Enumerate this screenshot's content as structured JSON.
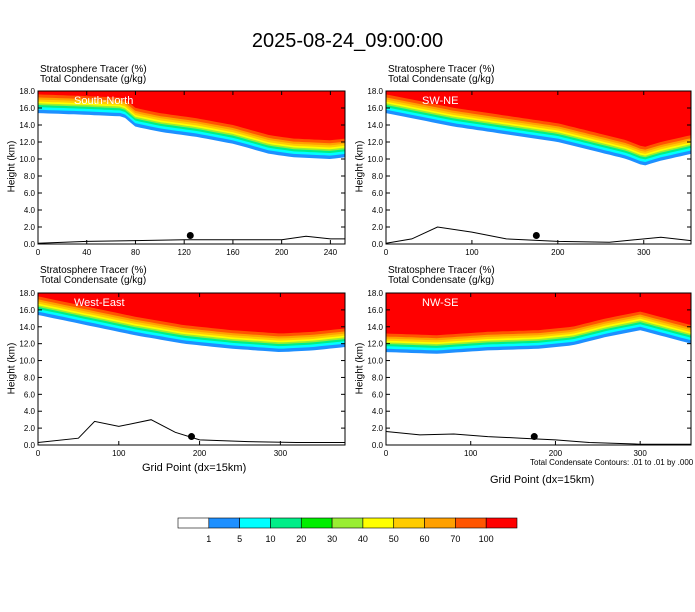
{
  "page_title": "2025-08-24_09:00:00",
  "colors": {
    "bins": [
      "#ffffff",
      "#1e90ff",
      "#00ffff",
      "#00ee88",
      "#00ee00",
      "#99ee33",
      "#ffff00",
      "#ffcc00",
      "#ffa000",
      "#ff5500",
      "#ff0000"
    ]
  },
  "colorbar": {
    "labels": [
      "1",
      "5",
      "10",
      "20",
      "30",
      "40",
      "50",
      "60",
      "70",
      "100"
    ]
  },
  "chart_data": [
    {
      "type": "contour-cross-section",
      "header_lines": [
        "Stratosphere Tracer    (%)",
        "Total Condensate    (g/kg)"
      ],
      "section_label": "South-North",
      "ylabel": "Height (km)",
      "xlabel": "",
      "xlim": [
        0,
        252
      ],
      "ylim": [
        0,
        18
      ],
      "xticks": [
        "0",
        "40",
        "80",
        "120",
        "160",
        "200",
        "240"
      ],
      "xtick_values": [
        0,
        40,
        80,
        120,
        160,
        200,
        240
      ],
      "yticks": [
        "0.0",
        "2.0",
        "4.0",
        "6.0",
        "8.0",
        "10.0",
        "12.0",
        "14.0",
        "16.0",
        "18.0"
      ],
      "tracer_base_km": [
        [
          0,
          15.4
        ],
        [
          40,
          15.2
        ],
        [
          70,
          15.0
        ],
        [
          80,
          13.8
        ],
        [
          100,
          13.2
        ],
        [
          130,
          12.6
        ],
        [
          160,
          11.8
        ],
        [
          190,
          10.6
        ],
        [
          210,
          10.2
        ],
        [
          240,
          10.0
        ],
        [
          252,
          10.2
        ]
      ],
      "terrain_km": [
        [
          0,
          0.1
        ],
        [
          40,
          0.3
        ],
        [
          80,
          0.4
        ],
        [
          120,
          0.5
        ],
        [
          160,
          0.5
        ],
        [
          200,
          0.5
        ],
        [
          220,
          0.9
        ],
        [
          240,
          0.6
        ],
        [
          252,
          0.6
        ]
      ],
      "marker": [
        125,
        1.0
      ]
    },
    {
      "type": "contour-cross-section",
      "header_lines": [
        "Stratosphere Tracer    (%)",
        "Total Condensate    (g/kg)"
      ],
      "section_label": "SW-NE",
      "ylabel": "Height (km)",
      "xlabel": "",
      "xlim": [
        0,
        355
      ],
      "ylim": [
        0,
        18
      ],
      "xticks": [
        "0",
        "100",
        "200",
        "300"
      ],
      "xtick_values": [
        0,
        100,
        200,
        300
      ],
      "yticks": [
        "0.0",
        "2.0",
        "4.0",
        "6.0",
        "8.0",
        "10.0",
        "12.0",
        "14.0",
        "16.0",
        "18.0"
      ],
      "tracer_base_km": [
        [
          0,
          15.4
        ],
        [
          40,
          14.6
        ],
        [
          80,
          13.8
        ],
        [
          120,
          13.2
        ],
        [
          160,
          12.6
        ],
        [
          200,
          12.0
        ],
        [
          240,
          11.0
        ],
        [
          280,
          10.0
        ],
        [
          300,
          9.2
        ],
        [
          320,
          9.8
        ],
        [
          355,
          10.6
        ]
      ],
      "terrain_km": [
        [
          0,
          0.1
        ],
        [
          30,
          0.6
        ],
        [
          60,
          2.0
        ],
        [
          100,
          1.4
        ],
        [
          140,
          0.6
        ],
        [
          200,
          0.3
        ],
        [
          260,
          0.2
        ],
        [
          320,
          0.8
        ],
        [
          355,
          0.4
        ]
      ],
      "marker": [
        175,
        1.0
      ]
    },
    {
      "type": "contour-cross-section",
      "header_lines": [
        "Stratosphere Tracer    (%)",
        "Total Condensate    (g/kg)"
      ],
      "section_label": "West-East",
      "ylabel": "Height (km)",
      "xlabel": "Grid Point (dx=15km)",
      "xlim": [
        0,
        380
      ],
      "ylim": [
        0,
        18
      ],
      "xticks": [
        "0",
        "100",
        "200",
        "300"
      ],
      "xtick_values": [
        0,
        100,
        200,
        300
      ],
      "yticks": [
        "0.0",
        "2.0",
        "4.0",
        "6.0",
        "8.0",
        "10.0",
        "12.0",
        "14.0",
        "16.0",
        "18.0"
      ],
      "tracer_base_km": [
        [
          0,
          15.4
        ],
        [
          60,
          14.2
        ],
        [
          120,
          13.0
        ],
        [
          180,
          12.0
        ],
        [
          240,
          11.4
        ],
        [
          300,
          11.0
        ],
        [
          340,
          11.2
        ],
        [
          380,
          11.6
        ]
      ],
      "terrain_km": [
        [
          0,
          0.3
        ],
        [
          50,
          0.8
        ],
        [
          70,
          2.8
        ],
        [
          100,
          2.2
        ],
        [
          140,
          3.0
        ],
        [
          170,
          1.5
        ],
        [
          200,
          0.6
        ],
        [
          260,
          0.4
        ],
        [
          320,
          0.3
        ],
        [
          380,
          0.3
        ]
      ],
      "marker": [
        190,
        1.0
      ]
    },
    {
      "type": "contour-cross-section",
      "header_lines": [
        "Stratosphere Tracer    (%)",
        "Total Condensate    (g/kg)"
      ],
      "section_label": "NW-SE",
      "ylabel": "Height (km)",
      "xlabel": "Grid Point (dx=15km)",
      "xlim": [
        0,
        360
      ],
      "ylim": [
        0,
        18
      ],
      "xticks": [
        "0",
        "100",
        "200",
        "300"
      ],
      "xtick_values": [
        0,
        100,
        200,
        300
      ],
      "yticks": [
        "0.0",
        "2.0",
        "4.0",
        "6.0",
        "8.0",
        "10.0",
        "12.0",
        "14.0",
        "16.0",
        "18.0"
      ],
      "tracer_base_km": [
        [
          0,
          11.0
        ],
        [
          60,
          10.8
        ],
        [
          120,
          11.2
        ],
        [
          180,
          11.4
        ],
        [
          220,
          11.8
        ],
        [
          260,
          12.8
        ],
        [
          300,
          13.6
        ],
        [
          330,
          12.8
        ],
        [
          360,
          12.0
        ]
      ],
      "terrain_km": [
        [
          0,
          1.6
        ],
        [
          40,
          1.2
        ],
        [
          80,
          1.3
        ],
        [
          120,
          1.0
        ],
        [
          160,
          0.8
        ],
        [
          200,
          0.6
        ],
        [
          240,
          0.3
        ],
        [
          300,
          0.1
        ],
        [
          360,
          0.1
        ]
      ],
      "marker": [
        175,
        1.0
      ]
    }
  ],
  "contour_note": "Total Condensate Contours: .01 to .01 by .000"
}
